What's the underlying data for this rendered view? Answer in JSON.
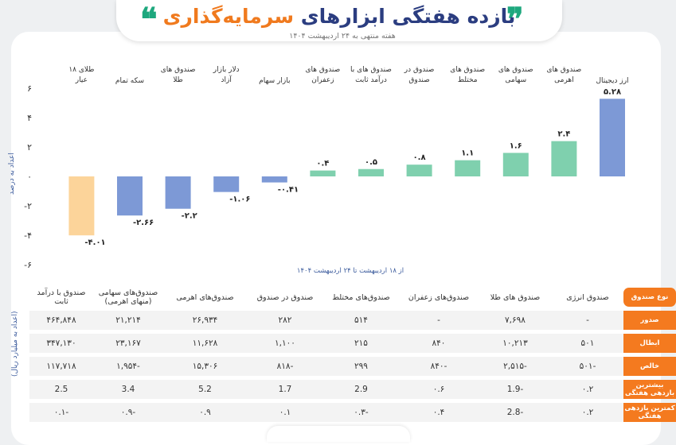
{
  "header": {
    "title_part1": "بازده هفتگی ابزارهای ",
    "title_part2": "سرمایه‌گذاری",
    "subtitle": "هفته منتهی به ۲۴ اردیبهشت ۱۴۰۴",
    "quote_right": "❞",
    "quote_left": "❝"
  },
  "chart_data": {
    "type": "bar",
    "categories": [
      "ارز دیجیتال",
      "صندوق های اهرمی",
      "صندوق های سهامی",
      "صندوق های مختلط",
      "صندوق در صندوق",
      "صندوق های با درآمد ثابت",
      "صندوق های زعفران",
      "بازار سهام",
      "دلار بازار آزاد",
      "صندوق های طلا",
      "سکه تمام",
      "طلای ۱۸ عیار"
    ],
    "values": [
      5.28,
      2.4,
      1.6,
      1.1,
      0.8,
      0.5,
      0.4,
      -0.41,
      -1.06,
      -2.2,
      -2.66,
      -4.01
    ],
    "value_labels": [
      "۵.۲۸",
      "۲.۴",
      "۱.۶",
      "۱.۱",
      "۰.۸",
      "۰.۵",
      "۰.۴",
      "-۰.۴۱",
      "-۱.۰۶",
      "-۲.۲",
      "-۲.۶۶",
      "-۴.۰۱"
    ],
    "colors": [
      "#7d99d6",
      "#7fd0ae",
      "#7fd0ae",
      "#7fd0ae",
      "#7fd0ae",
      "#7fd0ae",
      "#7fd0ae",
      "#7d99d6",
      "#7d99d6",
      "#7d99d6",
      "#7d99d6",
      "#fcd49a"
    ],
    "ylim": [
      -6,
      6
    ],
    "yticks": [
      6,
      4,
      2,
      0,
      -2,
      -4,
      -6
    ],
    "ytick_labels": [
      "۶",
      "۴",
      "۲",
      "۰",
      "-۲",
      "-۴",
      "-۶"
    ],
    "ylabel": "اعداد به درصد",
    "xnote": "از ۱۸ اردیبهشت تا ۲۴ اردیبهشت ۱۴۰۴",
    "grid": false
  },
  "table": {
    "side_label": "(اعداد به میلیارد ریال)",
    "corner_label": "نوع صندوق",
    "columns": [
      "صندوق انرژی",
      "صندوق های طلا",
      "صندوق‌های زعفران",
      "صندوق‌های مختلط",
      "صندوق در صندوق",
      "صندوق‌های اهرمی",
      "صندوق‌های سهامی (منهای اهرمی)",
      "صندوق با درآمد ثابت"
    ],
    "rows": [
      {
        "label": "صدور",
        "values": [
          "-",
          "۷,۶۹۸",
          "-",
          "۵۱۴",
          "۲۸۲",
          "۲۶,۹۳۴",
          "۲۱,۲۱۴",
          "۴۶۴,۸۴۸"
        ]
      },
      {
        "label": "ابطال",
        "values": [
          "۵۰۱",
          "۱۰,۲۱۳",
          "۸۴۰",
          "۲۱۵",
          "۱,۱۰۰",
          "۱۱,۶۲۸",
          "۲۳,۱۶۷",
          "۳۴۷,۱۳۰"
        ]
      },
      {
        "label": "خالص",
        "values": [
          "-۵۰۱",
          "-۲,۵۱۵",
          "-۸۴۰",
          "۲۹۹",
          "-۸۱۸",
          "۱۵,۳۰۶",
          "-۱,۹۵۴",
          "۱۱۷,۷۱۸"
        ]
      },
      {
        "label": "بیشترین بازدهی هفتگی",
        "values": [
          "۰.۲",
          "-1.9",
          "۰.۶",
          "2.9",
          "1.7",
          "5.2",
          "3.4",
          "2.5"
        ]
      },
      {
        "label": "کمترین بازدهی هفتگی",
        "values": [
          "۰.۲",
          "-2.8",
          "۰.۴",
          "-۰.۳",
          "۰.۱",
          "۰.۹",
          "-۰.۹",
          "-۰.۱"
        ]
      }
    ]
  }
}
